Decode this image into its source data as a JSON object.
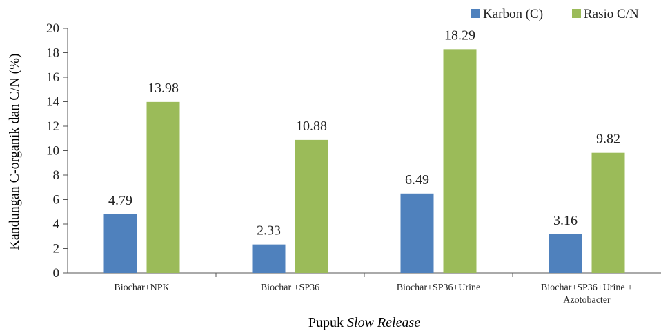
{
  "chart_data": {
    "type": "bar",
    "categories": [
      [
        "Biochar+NPK"
      ],
      [
        "Biochar +SP36"
      ],
      [
        "Biochar+SP36+Urine"
      ],
      [
        "Biochar+SP36+Urine +",
        "Azotobacter"
      ]
    ],
    "series": [
      {
        "name": "Karbon (C)",
        "color": "#4f81bd",
        "values": [
          4.79,
          2.33,
          6.49,
          3.16
        ]
      },
      {
        "name": "Rasio C/N",
        "color": "#9bbb59",
        "values": [
          13.98,
          10.88,
          18.29,
          9.82
        ]
      }
    ],
    "ylabel": "Kandungan  C-organik dan C/N (%)",
    "xlabel_plain": "Pupuk ",
    "xlabel_italic": "Slow Release",
    "ylim": [
      0,
      20
    ],
    "yticks": [
      0,
      2,
      4,
      6,
      8,
      10,
      12,
      14,
      16,
      18,
      20
    ],
    "grid": false,
    "legend_position": "top-right"
  }
}
